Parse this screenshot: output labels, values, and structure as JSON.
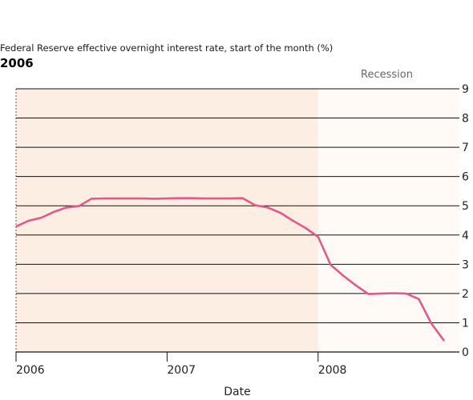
{
  "chart_data": {
    "type": "line",
    "title": "2006",
    "subtitle": "Federal Reserve effective overnight interest rate, start of the month (%)",
    "xlabel": "Date",
    "ylabel": "",
    "ylim": [
      0,
      9
    ],
    "yticks": [
      "0",
      "1",
      "2",
      "3",
      "4",
      "5",
      "6",
      "7",
      "8",
      "9"
    ],
    "xticks": [
      "2006",
      "2007",
      "2008"
    ],
    "xlim": [
      "2006-01",
      "2008-11"
    ],
    "recession_label": "Recession",
    "recession_band": [
      "2008-01",
      "2008-11"
    ],
    "grid": true,
    "colors": {
      "line": "#e05a8a",
      "background_band": "#fdeee3",
      "recession_band": "#fffaf6"
    },
    "x": [
      "2006-01",
      "2006-02",
      "2006-03",
      "2006-04",
      "2006-05",
      "2006-06",
      "2006-07",
      "2006-08",
      "2006-09",
      "2006-10",
      "2006-11",
      "2006-12",
      "2007-01",
      "2007-02",
      "2007-03",
      "2007-04",
      "2007-05",
      "2007-06",
      "2007-07",
      "2007-08",
      "2007-09",
      "2007-10",
      "2007-11",
      "2007-12",
      "2008-01",
      "2008-02",
      "2008-03",
      "2008-04",
      "2008-05",
      "2008-06",
      "2008-07",
      "2008-08",
      "2008-09",
      "2008-10",
      "2008-11"
    ],
    "series": [
      {
        "values": [
          4.29,
          4.49,
          4.59,
          4.79,
          4.94,
          4.99,
          5.24,
          5.25,
          5.25,
          5.25,
          5.25,
          5.24,
          5.25,
          5.26,
          5.26,
          5.25,
          5.25,
          5.25,
          5.26,
          5.02,
          4.94,
          4.76,
          4.49,
          4.24,
          3.94,
          2.98,
          2.61,
          2.28,
          1.98,
          2.0,
          2.01,
          2.0,
          1.81,
          0.97,
          0.39
        ]
      }
    ]
  }
}
